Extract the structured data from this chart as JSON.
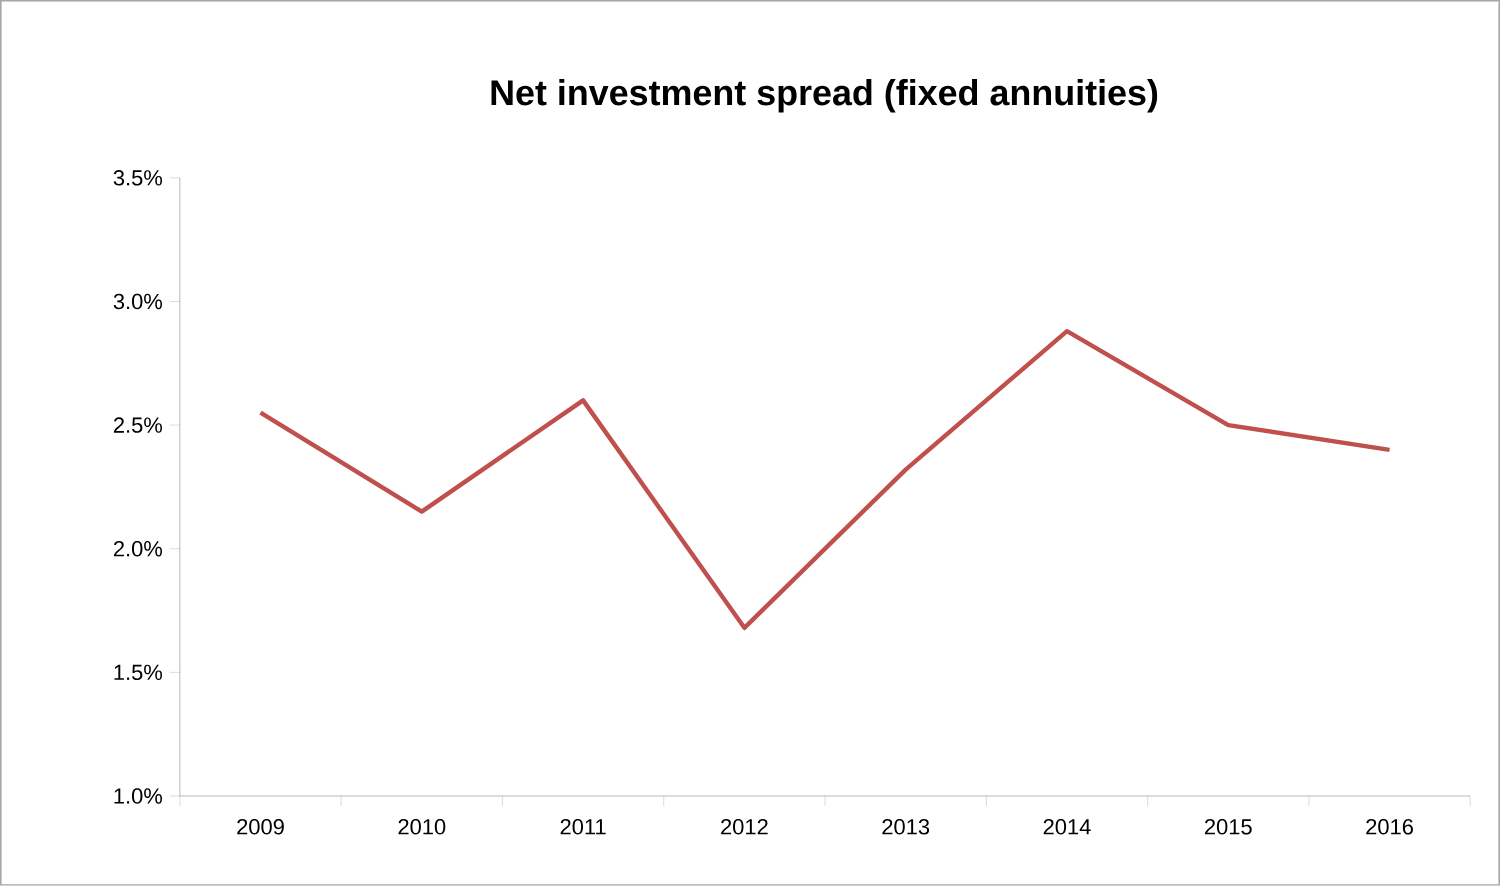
{
  "chart_data": {
    "type": "line",
    "title": "Net investment spread (fixed annuities)",
    "categories": [
      "2009",
      "2010",
      "2011",
      "2012",
      "2013",
      "2014",
      "2015",
      "2016"
    ],
    "values": [
      2.55,
      2.15,
      2.6,
      1.68,
      2.32,
      2.88,
      2.5,
      2.4
    ],
    "color": "#c0504d",
    "ylim": [
      1.0,
      3.5
    ],
    "yticks": [
      {
        "value": 1.0,
        "label": "1.0%"
      },
      {
        "value": 1.5,
        "label": "1.5%"
      },
      {
        "value": 2.0,
        "label": "2.0%"
      },
      {
        "value": 2.5,
        "label": "2.5%"
      },
      {
        "value": 3.0,
        "label": "3.0%"
      },
      {
        "value": 3.5,
        "label": "3.5%"
      }
    ]
  }
}
